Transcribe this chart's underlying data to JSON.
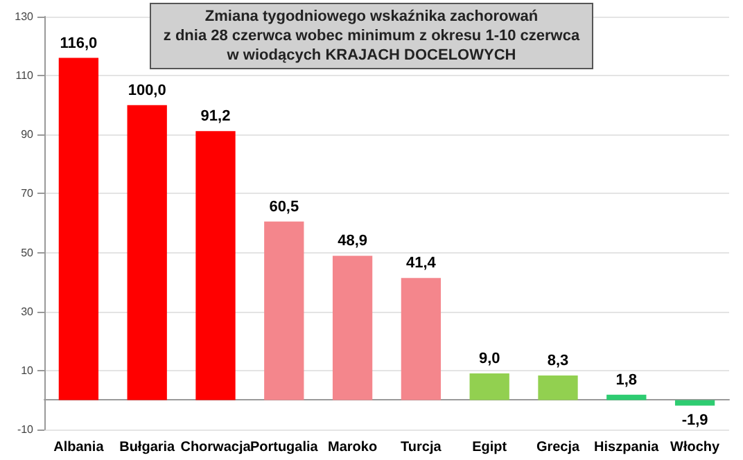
{
  "chart_data": {
    "type": "bar",
    "title": "Zmiana tygodniowego wskaźnika zachorowań\nz dnia 28 czerwca wobec minimum z okresu 1-10 czerwca\nw wiodących KRAJACH DOCELOWYCH",
    "categories": [
      "Albania",
      "Bułgaria",
      "Chorwacja",
      "Portugalia",
      "Maroko",
      "Turcja",
      "Egipt",
      "Grecja",
      "Hiszpania",
      "Włochy"
    ],
    "values": [
      116.0,
      100.0,
      91.2,
      60.5,
      48.9,
      41.4,
      9.0,
      8.3,
      1.8,
      -1.9
    ],
    "value_labels": [
      "116,0",
      "100,0",
      "91,2",
      "60,5",
      "48,9",
      "41,4",
      "9,0",
      "8,3",
      "1,8",
      "-1,9"
    ],
    "colors": [
      "#ff0000",
      "#ff0000",
      "#ff0000",
      "#f4868c",
      "#f4868c",
      "#f4868c",
      "#92d050",
      "#92d050",
      "#2ecc71",
      "#2ecc71"
    ],
    "ylim": [
      -10,
      130
    ],
    "yticks": [
      -10,
      10,
      30,
      50,
      70,
      90,
      110,
      130
    ],
    "grid": "y"
  }
}
